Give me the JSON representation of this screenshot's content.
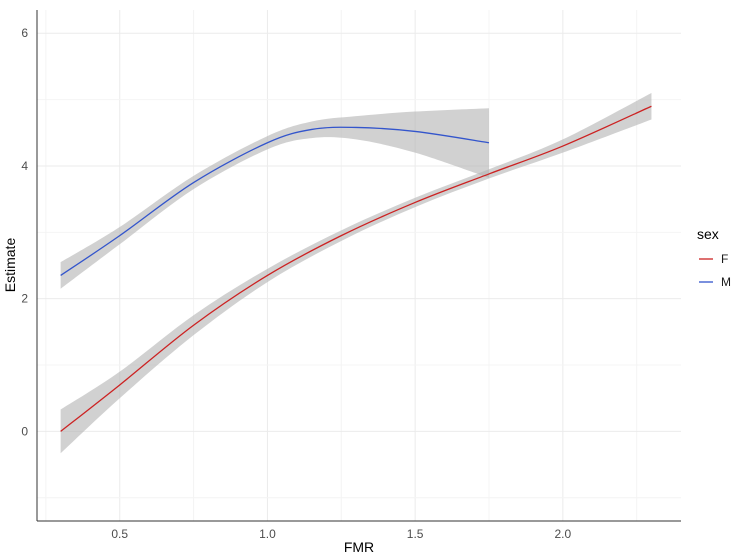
{
  "chart_data": {
    "type": "line",
    "xlabel": "FMR",
    "ylabel": "Estimate",
    "xlim": [
      0.22,
      2.4
    ],
    "ylim": [
      -1.35,
      6.35
    ],
    "x_ticks": [
      0.5,
      1.0,
      1.5,
      2.0
    ],
    "x_tick_labels": [
      "0.5",
      "1.0",
      "1.5",
      "2.0"
    ],
    "y_ticks": [
      0,
      2,
      4,
      6
    ],
    "y_tick_labels": [
      "0",
      "2",
      "4",
      "6"
    ],
    "grid": true,
    "legend": {
      "title": "sex",
      "position": "right"
    },
    "series": [
      {
        "name": "F",
        "color": "#cc2222",
        "ribbon_color": "#b3b3b3",
        "x": [
          0.3,
          0.5,
          0.75,
          1.0,
          1.25,
          1.5,
          1.75,
          2.0,
          2.3
        ],
        "y": [
          0.0,
          0.7,
          1.6,
          2.35,
          2.95,
          3.45,
          3.88,
          4.3,
          4.9
        ],
        "lower": [
          -0.33,
          0.5,
          1.45,
          2.25,
          2.87,
          3.38,
          3.81,
          4.2,
          4.7
        ],
        "upper": [
          0.33,
          0.9,
          1.75,
          2.45,
          3.03,
          3.52,
          3.95,
          4.4,
          5.1
        ]
      },
      {
        "name": "M",
        "color": "#3355cc",
        "ribbon_color": "#b3b3b3",
        "x": [
          0.3,
          0.5,
          0.75,
          1.0,
          1.15,
          1.3,
          1.5,
          1.75
        ],
        "y": [
          2.35,
          2.95,
          3.75,
          4.35,
          4.55,
          4.58,
          4.52,
          4.35
        ],
        "lower": [
          2.15,
          2.82,
          3.65,
          4.25,
          4.42,
          4.4,
          4.2,
          3.82
        ],
        "upper": [
          2.55,
          3.08,
          3.85,
          4.45,
          4.67,
          4.75,
          4.82,
          4.87
        ]
      }
    ]
  }
}
